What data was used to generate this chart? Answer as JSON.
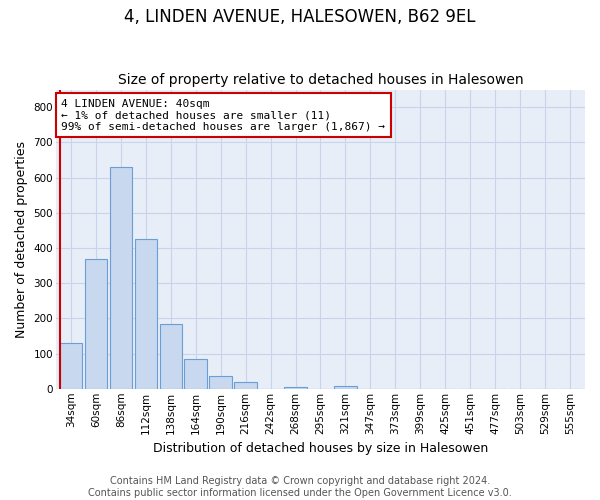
{
  "title": "4, LINDEN AVENUE, HALESOWEN, B62 9EL",
  "subtitle": "Size of property relative to detached houses in Halesowen",
  "xlabel": "Distribution of detached houses by size in Halesowen",
  "ylabel": "Number of detached properties",
  "bar_values": [
    130,
    370,
    630,
    425,
    185,
    85,
    35,
    18,
    0,
    5,
    0,
    8,
    0,
    0,
    0,
    0,
    0,
    0,
    0,
    0,
    0
  ],
  "bar_labels": [
    "34sqm",
    "60sqm",
    "86sqm",
    "112sqm",
    "138sqm",
    "164sqm",
    "190sqm",
    "216sqm",
    "242sqm",
    "268sqm",
    "295sqm",
    "321sqm",
    "347sqm",
    "373sqm",
    "399sqm",
    "425sqm",
    "451sqm",
    "477sqm",
    "503sqm",
    "529sqm",
    "555sqm"
  ],
  "bar_color": "#c8d8ef",
  "bar_edge_color": "#6b9fd4",
  "annotation_text": "4 LINDEN AVENUE: 40sqm\n← 1% of detached houses are smaller (11)\n99% of semi-detached houses are larger (1,867) →",
  "annotation_box_facecolor": "#ffffff",
  "annotation_box_edgecolor": "#cc0000",
  "red_line_color": "#cc0000",
  "ylim": [
    0,
    850
  ],
  "yticks": [
    0,
    100,
    200,
    300,
    400,
    500,
    600,
    700,
    800
  ],
  "footer_text": "Contains HM Land Registry data © Crown copyright and database right 2024.\nContains public sector information licensed under the Open Government Licence v3.0.",
  "bg_color": "#ffffff",
  "plot_bg_color": "#e8eef8",
  "grid_color": "#c8d4e8",
  "title_fontsize": 12,
  "subtitle_fontsize": 10,
  "axis_label_fontsize": 9,
  "tick_fontsize": 7.5,
  "annotation_fontsize": 8,
  "footer_fontsize": 7
}
